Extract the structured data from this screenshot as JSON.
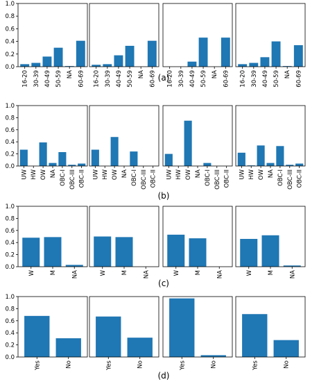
{
  "colors": {
    "bar": "#1f77b4",
    "axis": "#000000",
    "background": "#ffffff"
  },
  "chart_data": [
    {
      "label": "(a)",
      "type": "bar",
      "categories": [
        "16-20",
        "30-39",
        "40-49",
        "50-59",
        "NA",
        "60-69"
      ],
      "ylim": [
        0,
        1.0
      ],
      "yticks": [
        "0.0",
        "0.2",
        "0.4",
        "0.6",
        "0.8",
        "1.0"
      ],
      "series": [
        {
          "values": [
            0.04,
            0.06,
            0.16,
            0.3,
            0.01,
            0.41
          ]
        },
        {
          "values": [
            0.03,
            0.04,
            0.18,
            0.33,
            0.0,
            0.41
          ]
        },
        {
          "values": [
            0.0,
            0.0,
            0.08,
            0.46,
            0.0,
            0.46
          ]
        },
        {
          "values": [
            0.04,
            0.06,
            0.15,
            0.4,
            0.01,
            0.34
          ]
        }
      ]
    },
    {
      "label": "(b)",
      "type": "bar",
      "categories": [
        "UW",
        "HW",
        "OW",
        "NA",
        "OBC-I",
        "OBC-III",
        "OBC-II"
      ],
      "ylim": [
        0,
        1.0
      ],
      "yticks": [
        "0.0",
        "0.2",
        "0.4",
        "0.6",
        "0.8",
        "1.0"
      ],
      "series": [
        {
          "values": [
            0.27,
            0.0,
            0.39,
            0.05,
            0.23,
            0.02,
            0.04
          ]
        },
        {
          "values": [
            0.27,
            0.0,
            0.48,
            0.0,
            0.24,
            0.0,
            0.0
          ]
        },
        {
          "values": [
            0.2,
            0.0,
            0.75,
            0.0,
            0.05,
            0.0,
            0.0
          ]
        },
        {
          "values": [
            0.22,
            0.01,
            0.34,
            0.05,
            0.33,
            0.02,
            0.04
          ]
        }
      ]
    },
    {
      "label": "(c)",
      "type": "bar",
      "categories": [
        "W",
        "M",
        "NA"
      ],
      "ylim": [
        0,
        1.0
      ],
      "yticks": [
        "0.0",
        "0.2",
        "0.4",
        "0.6",
        "0.8",
        "1.0"
      ],
      "series": [
        {
          "values": [
            0.48,
            0.49,
            0.03
          ]
        },
        {
          "values": [
            0.5,
            0.49,
            0.0
          ]
        },
        {
          "values": [
            0.53,
            0.47,
            0.0
          ]
        },
        {
          "values": [
            0.46,
            0.52,
            0.02
          ]
        }
      ]
    },
    {
      "label": "(d)",
      "type": "bar",
      "categories": [
        "Yes",
        "No"
      ],
      "ylim": [
        0,
        1.0
      ],
      "yticks": [
        "0.0",
        "0.2",
        "0.4",
        "0.6",
        "0.8",
        "1.0"
      ],
      "series": [
        {
          "values": [
            0.68,
            0.31
          ]
        },
        {
          "values": [
            0.67,
            0.32
          ]
        },
        {
          "values": [
            0.97,
            0.03
          ]
        },
        {
          "values": [
            0.71,
            0.28
          ]
        }
      ]
    }
  ]
}
